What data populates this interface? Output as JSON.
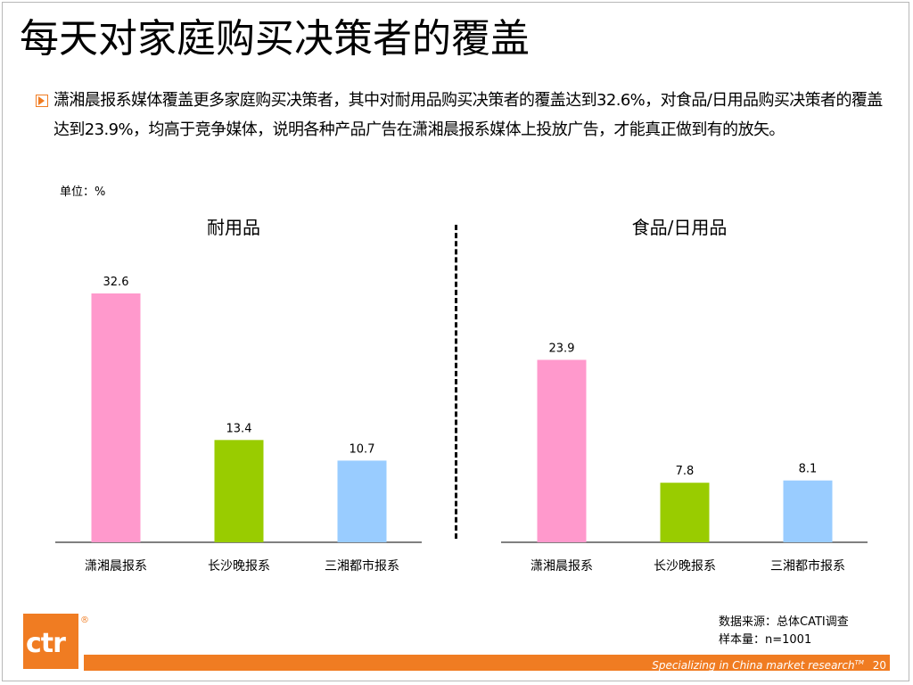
{
  "title": "每天对家庭购买决策者的覆盖",
  "description": "潇湘晨报系媒体覆盖更多家庭购买决策者，其中对耐用品购买决策者的覆盖达到32.6%，对食品/日用品购买决策者的覆盖达到23.9%，均高于竞争媒体，说明各种产品广告在潇湘晨报系媒体上投放广告，才能真正做到有的放矢。",
  "unit": "单位：%",
  "footnote": {
    "source": "数据来源：总体CATI调查",
    "sample": "样本量：n=1001"
  },
  "footer": {
    "tagline": "Specializing in China market research",
    "tm": "TM",
    "page": "20",
    "logo": "ctr"
  },
  "colors": {
    "accent": "#f07c22",
    "bar_colors": [
      "#ff99cc",
      "#99cc00",
      "#99ccff"
    ]
  },
  "chart_data": [
    {
      "type": "bar",
      "title": "耐用品",
      "categories": [
        "潇湘晨报系",
        "长沙晚报系",
        "三湘都市报系"
      ],
      "values": [
        32.6,
        13.4,
        10.7
      ],
      "data_labels": [
        "32.6",
        "13.4",
        "10.7"
      ],
      "ylim": [
        0,
        35
      ],
      "grid": false,
      "legend": "none"
    },
    {
      "type": "bar",
      "title": "食品/日用品",
      "categories": [
        "潇湘晨报系",
        "长沙晚报系",
        "三湘都市报系"
      ],
      "values": [
        23.9,
        7.8,
        8.1
      ],
      "data_labels": [
        "23.9",
        "7.8",
        "8.1"
      ],
      "ylim": [
        0,
        35
      ],
      "grid": false,
      "legend": "none"
    }
  ]
}
